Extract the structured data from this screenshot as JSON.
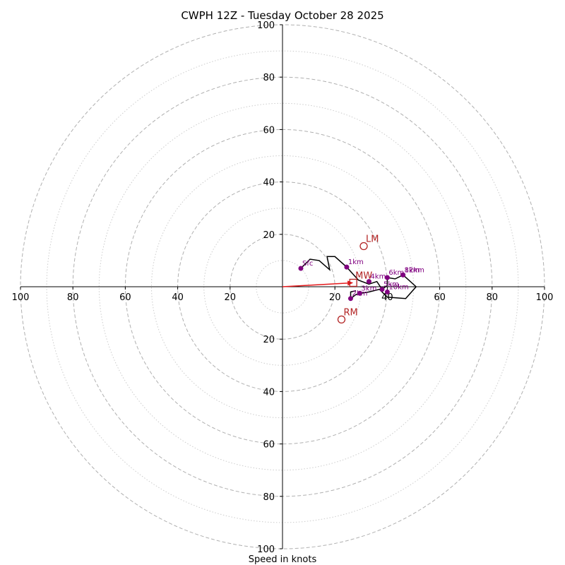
{
  "chart_data": {
    "type": "hodograph",
    "title": "CWPH 12Z - Tuesday October 28 2025",
    "xlabel": "Speed in knots",
    "units": "knots",
    "rmax": 100,
    "major_rings": [
      20,
      40,
      60,
      80,
      100
    ],
    "minor_rings": [
      10,
      30,
      50,
      70,
      90
    ],
    "x_tick_labels": [
      "100",
      "80",
      "60",
      "40",
      "20",
      "20",
      "40",
      "60",
      "80",
      "100"
    ],
    "x_tick_values": [
      -100,
      -80,
      -60,
      -40,
      -20,
      20,
      40,
      60,
      80,
      100
    ],
    "y_tick_labels_top": [
      "100",
      "80",
      "60",
      "40",
      "20"
    ],
    "y_tick_values_top": [
      100,
      80,
      60,
      40,
      20
    ],
    "y_tick_labels_bottom": [
      "20",
      "40",
      "60",
      "80",
      "100"
    ],
    "y_tick_values_bottom": [
      -20,
      -40,
      -60,
      -80,
      -100
    ],
    "trace": [
      [
        7,
        7
      ],
      [
        10.5,
        10.5
      ],
      [
        14,
        10
      ],
      [
        18,
        6.5
      ],
      [
        17,
        11.5
      ],
      [
        20,
        11.5
      ],
      [
        24.5,
        7.5
      ],
      [
        29,
        2.5
      ],
      [
        33,
        1
      ],
      [
        36,
        2
      ],
      [
        38,
        -1
      ],
      [
        40,
        0.5
      ],
      [
        40,
        3.5
      ],
      [
        43,
        3
      ],
      [
        46,
        4.5
      ],
      [
        51,
        0
      ],
      [
        47,
        -4.5
      ],
      [
        40,
        -4
      ],
      [
        37,
        -1
      ],
      [
        33,
        -2
      ],
      [
        30,
        -2.5
      ],
      [
        28,
        -3
      ],
      [
        26,
        -4.5
      ],
      [
        26,
        -2
      ],
      [
        28,
        -1.5
      ]
    ],
    "height_markers": [
      {
        "label": "Sfc",
        "u": 7,
        "v": 7
      },
      {
        "label": "1km",
        "u": 24.5,
        "v": 7.5
      },
      {
        "label": "2km",
        "u": 26,
        "v": -4.5
      },
      {
        "label": "3km",
        "u": 29.5,
        "v": -2.5
      },
      {
        "label": "4km",
        "u": 33,
        "v": 2
      },
      {
        "label": "5km",
        "u": 38,
        "v": -1
      },
      {
        "label": "6km",
        "u": 40,
        "v": 3.5
      },
      {
        "label": "8km",
        "u": 46,
        "v": 4.5
      },
      {
        "label": "10km",
        "u": 40,
        "v": -2
      },
      {
        "label": "12km",
        "u": 46,
        "v": 4.5
      }
    ],
    "storm_motion": [
      {
        "label": "LM",
        "u": 31,
        "v": 15.5,
        "marker": "circle"
      },
      {
        "label": "MW",
        "u": 27,
        "v": 1.5,
        "marker": "square"
      },
      {
        "label": "RM",
        "u": 22.5,
        "v": -12.5,
        "marker": "circle"
      }
    ],
    "motion_arrow": {
      "from": [
        0,
        0
      ],
      "to": [
        27,
        1.5
      ]
    },
    "colors": {
      "trace": "#000000",
      "markers": "#800080",
      "motion": "#b22222",
      "arrow": "#e41a1c",
      "rings_major": "#b0b0b0",
      "rings_minor": "#cccccc"
    }
  }
}
